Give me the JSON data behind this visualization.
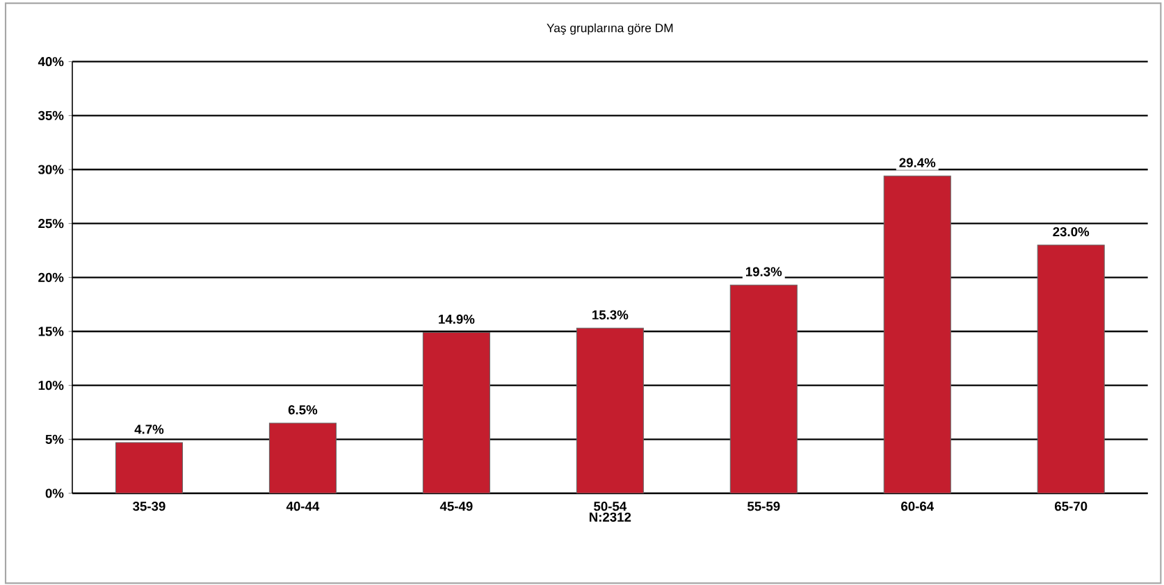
{
  "chart_data": {
    "type": "bar",
    "title": "Yaş gruplarına göre DM",
    "xlabel": "N:2312",
    "categories": [
      "35-39",
      "40-44",
      "45-49",
      "50-54",
      "55-59",
      "60-64",
      "65-70"
    ],
    "values": [
      4.7,
      6.5,
      14.9,
      15.3,
      19.3,
      29.4,
      23.0
    ],
    "value_labels": [
      "4.7%",
      "6.5%",
      "14.9%",
      "15.3%",
      "19.3%",
      "29.4%",
      "23.0%"
    ],
    "color": "#c41e2e",
    "ylim": [
      0,
      40
    ],
    "yticks": [
      {
        "value": 0,
        "label": "0%"
      },
      {
        "value": 5,
        "label": "5%"
      },
      {
        "value": 10,
        "label": "10%"
      },
      {
        "value": 15,
        "label": "15%"
      },
      {
        "value": 20,
        "label": "20%"
      },
      {
        "value": 25,
        "label": "25%"
      },
      {
        "value": 30,
        "label": "30%"
      },
      {
        "value": 35,
        "label": "35%"
      },
      {
        "value": 40,
        "label": "40%"
      }
    ],
    "grid": "y"
  }
}
